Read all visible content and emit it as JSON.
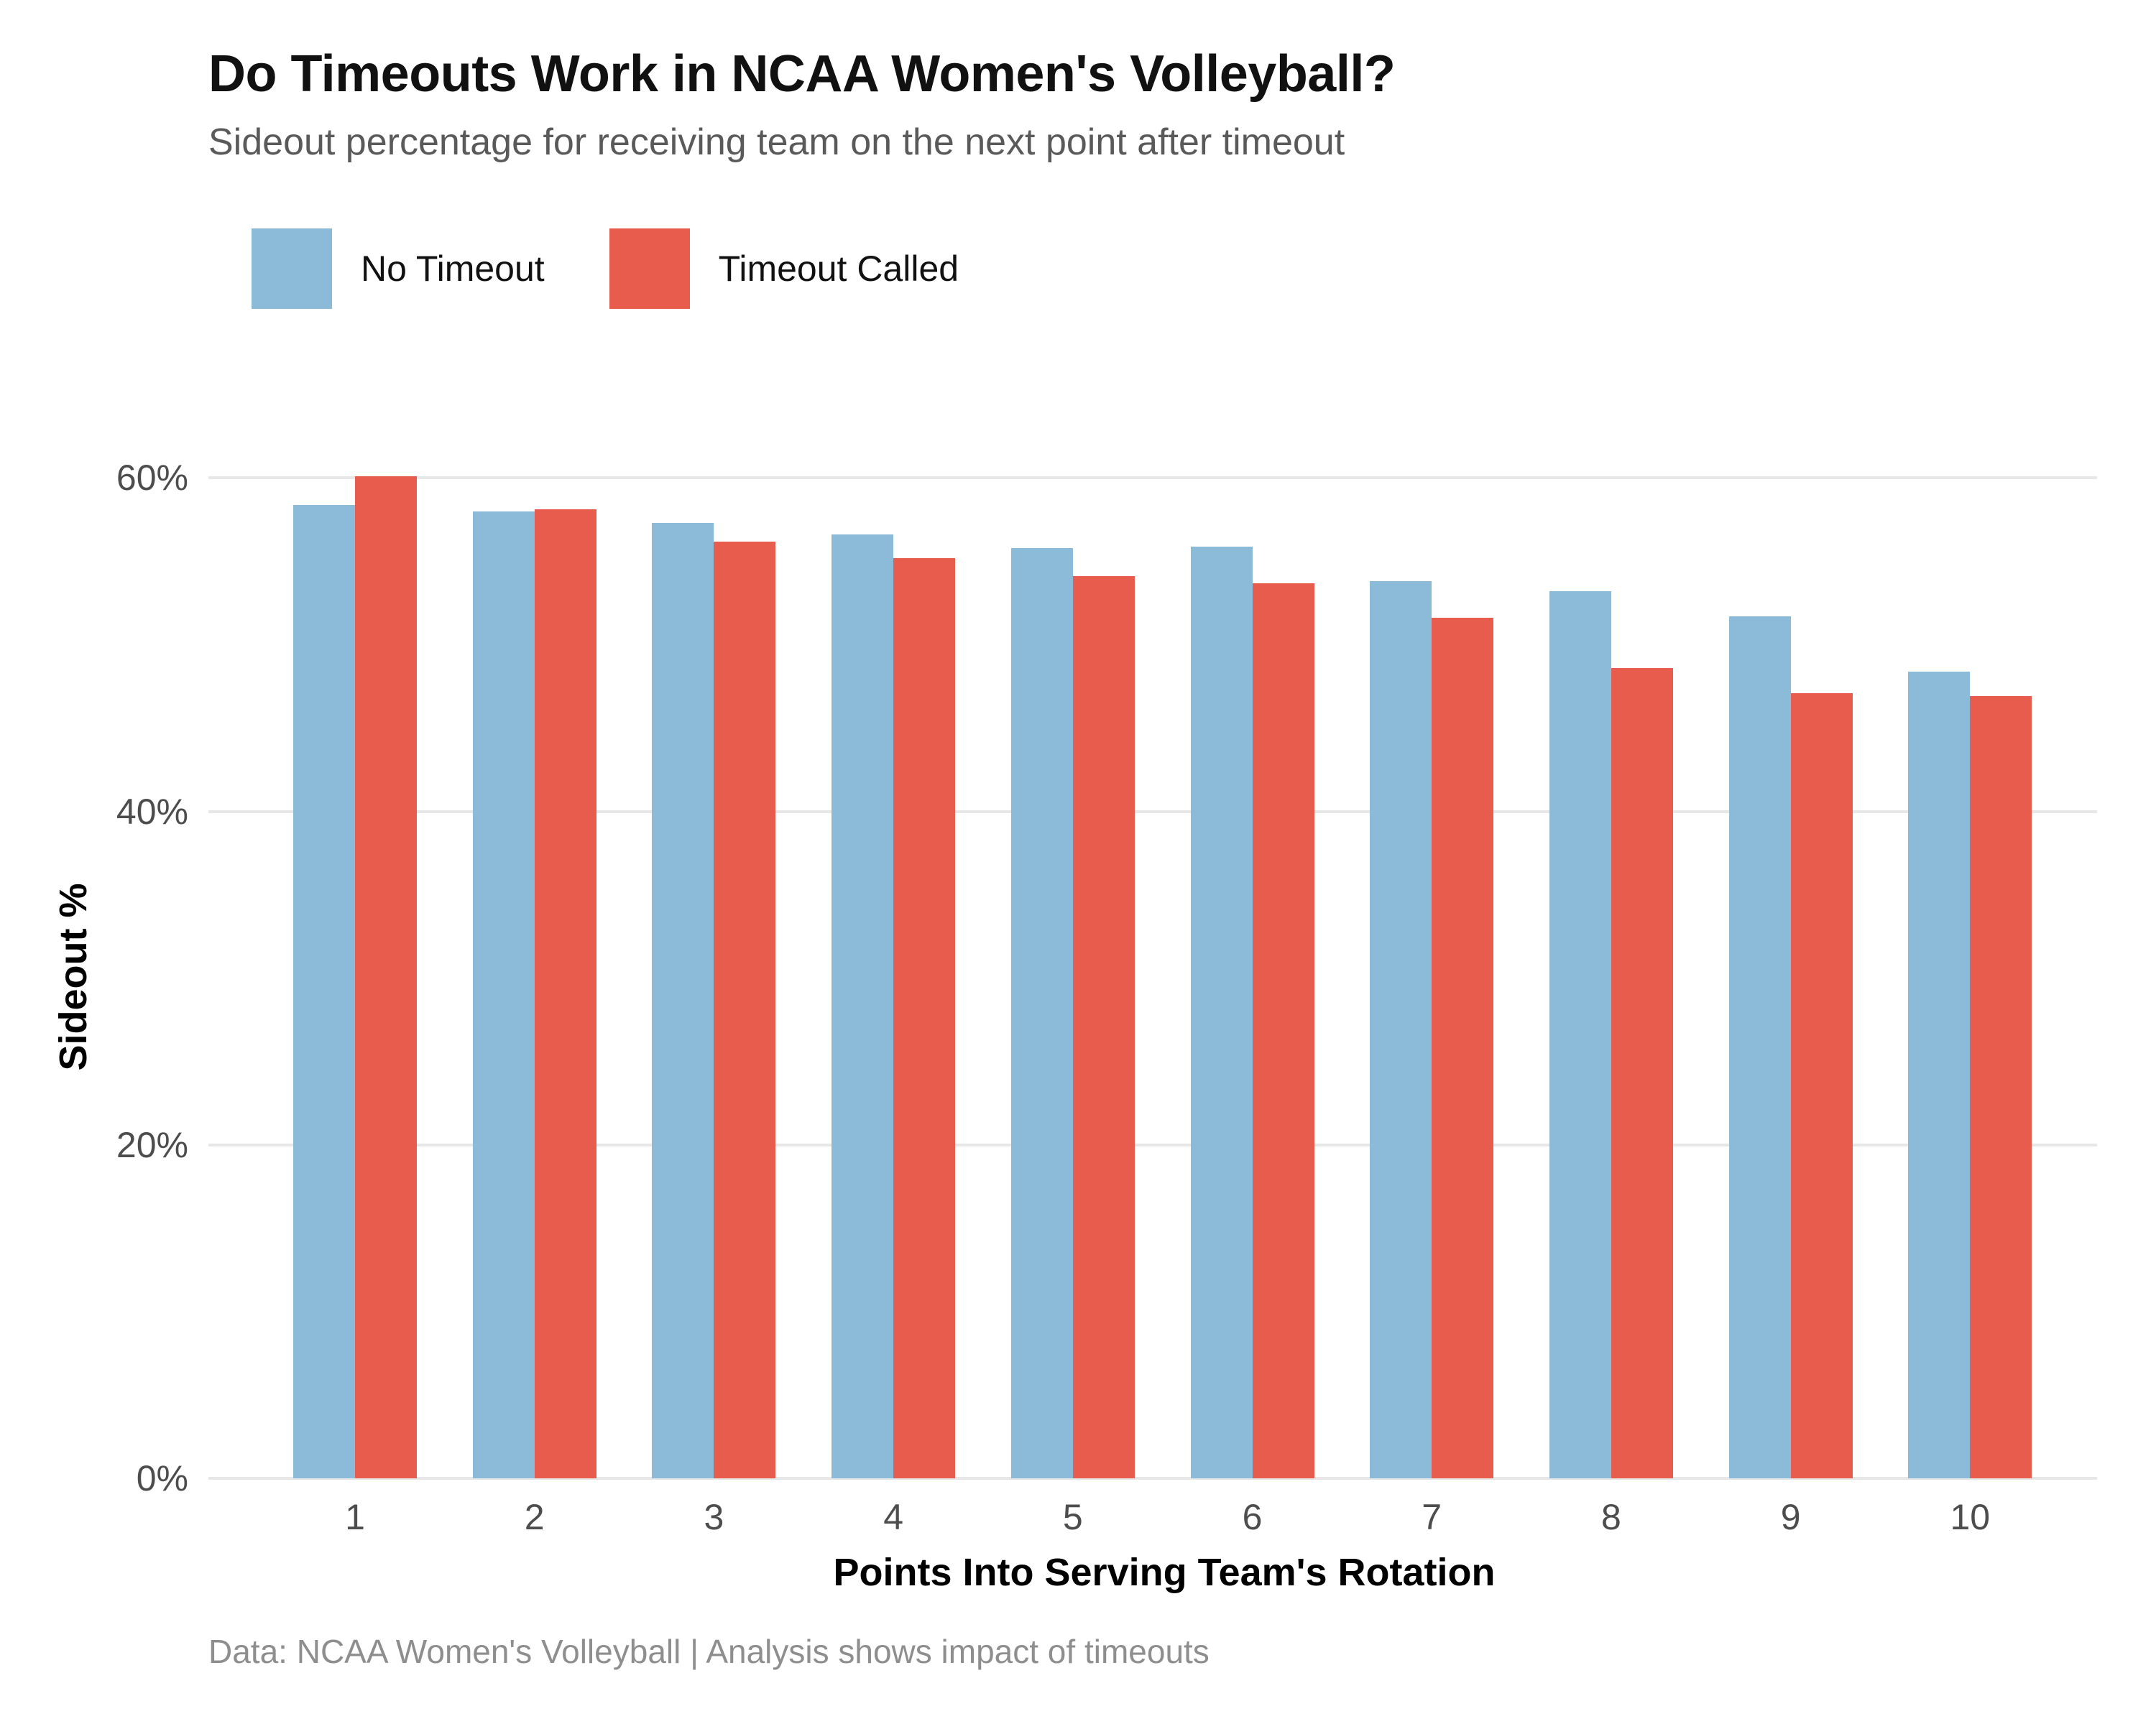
{
  "chart_data": {
    "type": "bar",
    "title": "Do Timeouts Work in NCAA Women's Volleyball?",
    "subtitle": "Sideout percentage for receiving team on the next point after timeout",
    "note": "Data: NCAA Women's Volleyball | Analysis shows impact of timeouts",
    "categories": [
      "1",
      "2",
      "3",
      "4",
      "5",
      "6",
      "7",
      "8",
      "9",
      "10"
    ],
    "series": [
      {
        "name": "No Timeout",
        "color": "#8CBAD9",
        "values": [
          58.4,
          58.0,
          57.3,
          56.6,
          55.8,
          55.9,
          53.8,
          53.2,
          51.7,
          48.4
        ]
      },
      {
        "name": "Timeout Called",
        "color": "#E85C4D",
        "values": [
          60.1,
          58.1,
          56.2,
          55.2,
          54.1,
          53.7,
          51.6,
          48.6,
          47.1,
          46.9
        ]
      }
    ],
    "xlabel": "Points Into Serving Team's Rotation",
    "ylabel": "Sideout %",
    "ylim": [
      0,
      62
    ],
    "yticks": [
      {
        "value": 0,
        "label": "0%"
      },
      {
        "value": 20,
        "label": "20%"
      },
      {
        "value": 40,
        "label": "40%"
      },
      {
        "value": 60,
        "label": "60%"
      }
    ],
    "grid": true,
    "legend_position": "top-left",
    "colors": {
      "grid": "#E7E7E7",
      "tick_text": "#4D4D4D",
      "title_text": "#111111",
      "subtitle_text": "#5A5A5A",
      "note_text": "#8E8E8E",
      "background": "#FFFFFF"
    }
  }
}
